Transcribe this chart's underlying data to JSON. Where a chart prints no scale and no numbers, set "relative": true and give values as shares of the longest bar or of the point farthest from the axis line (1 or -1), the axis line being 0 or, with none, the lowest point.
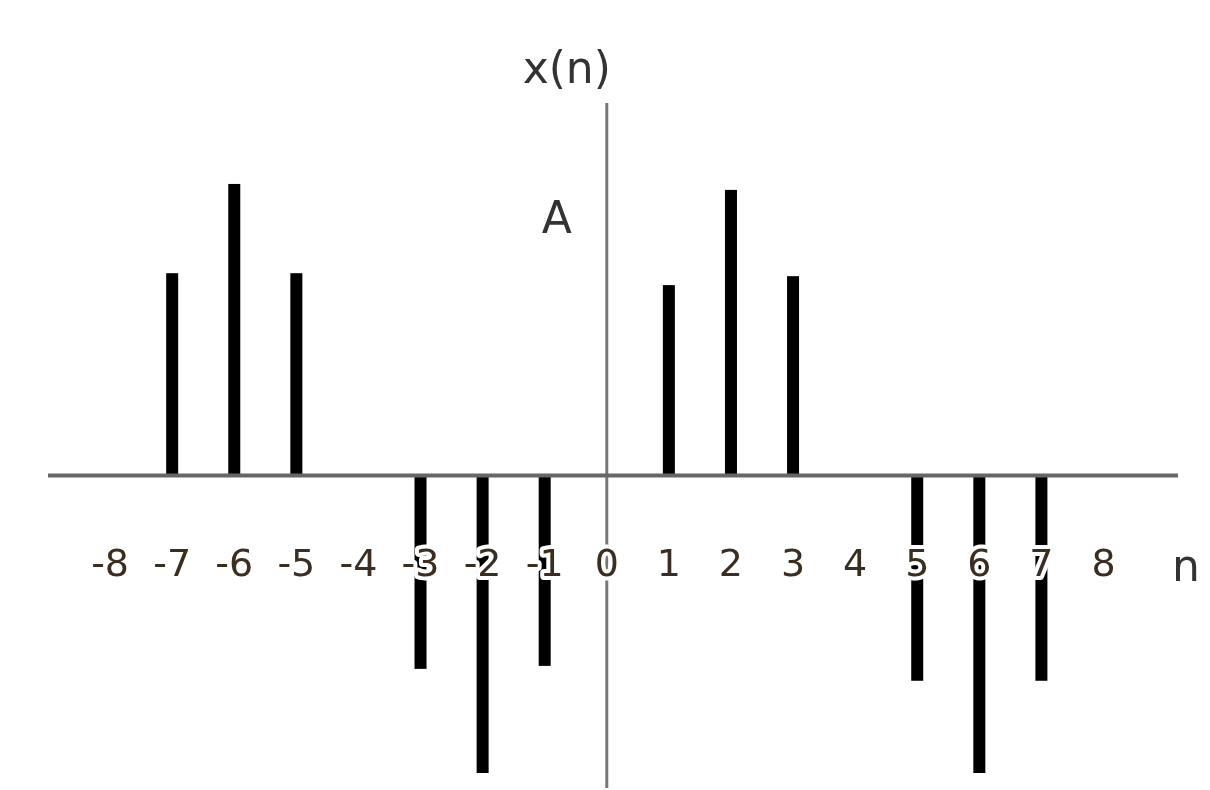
{
  "chart_data": {
    "type": "bar",
    "relative": true,
    "ylabel": "x(n)",
    "xlabel": "n",
    "annotations": [
      "A"
    ],
    "x": [
      -8,
      -7,
      -6,
      -5,
      -4,
      -3,
      -2,
      -1,
      0,
      1,
      2,
      3,
      4,
      5,
      6,
      7,
      8
    ],
    "xlim": [
      -9,
      9.2
    ],
    "xticks": [
      -8,
      -7,
      -6,
      -5,
      -4,
      -3,
      -2,
      -1,
      0,
      1,
      2,
      3,
      4,
      5,
      6,
      7,
      8
    ],
    "values": [
      0,
      0.68,
      0.98,
      0.68,
      0,
      -0.65,
      -1,
      -0.64,
      0,
      0.64,
      0.96,
      0.67,
      0,
      -0.69,
      -1,
      -0.69,
      0
    ],
    "color": "#000000"
  }
}
